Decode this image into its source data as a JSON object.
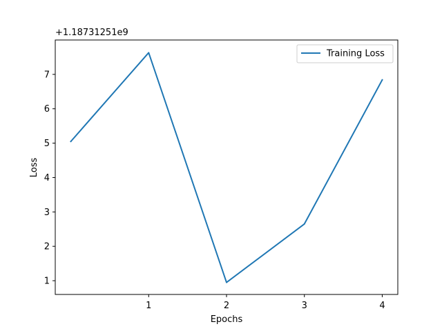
{
  "chart_data": {
    "type": "line",
    "x": [
      0,
      1,
      2,
      3,
      4
    ],
    "series": [
      {
        "name": "Training Loss",
        "values": [
          1187312515.05,
          1187312517.63,
          1187312510.95,
          1187312512.65,
          1187312516.84
        ]
      }
    ],
    "xlabel": "Epochs",
    "ylabel": "Loss",
    "x_ticks": [
      1,
      2,
      3,
      4
    ],
    "x_tick_labels": [
      "1",
      "2",
      "3",
      "4"
    ],
    "y_ticks": [
      1,
      2,
      3,
      4,
      5,
      6,
      7
    ],
    "y_tick_labels": [
      "1",
      "2",
      "3",
      "4",
      "5",
      "6",
      "7"
    ],
    "y_offset_label": "+1.18731251e9",
    "y_offset_value": 1187312510,
    "xlim": [
      -0.2,
      4.2
    ],
    "ylim": [
      1187312510.6,
      1187312518.0
    ],
    "legend_position": "top-right",
    "grid": false,
    "line_color": "#1f77b4"
  }
}
